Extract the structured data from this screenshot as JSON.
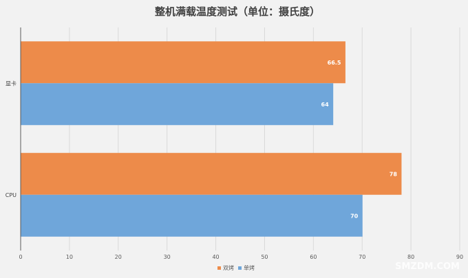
{
  "chart_data": {
    "type": "bar",
    "orientation": "horizontal",
    "title": "整机满载温度测试（单位：摄氏度）",
    "categories": [
      "显卡",
      "CPU"
    ],
    "series": [
      {
        "name": "双烤",
        "color": "#ed8b4a",
        "values": [
          66.5,
          78
        ]
      },
      {
        "name": "单烤",
        "color": "#6fa6da",
        "values": [
          64,
          70
        ]
      }
    ],
    "xlim": [
      0,
      90
    ],
    "xticks": [
      0,
      10,
      20,
      30,
      40,
      50,
      60,
      70,
      80,
      90
    ],
    "grid": true,
    "legend": "bottom"
  },
  "watermark": "SMZDM.COM"
}
